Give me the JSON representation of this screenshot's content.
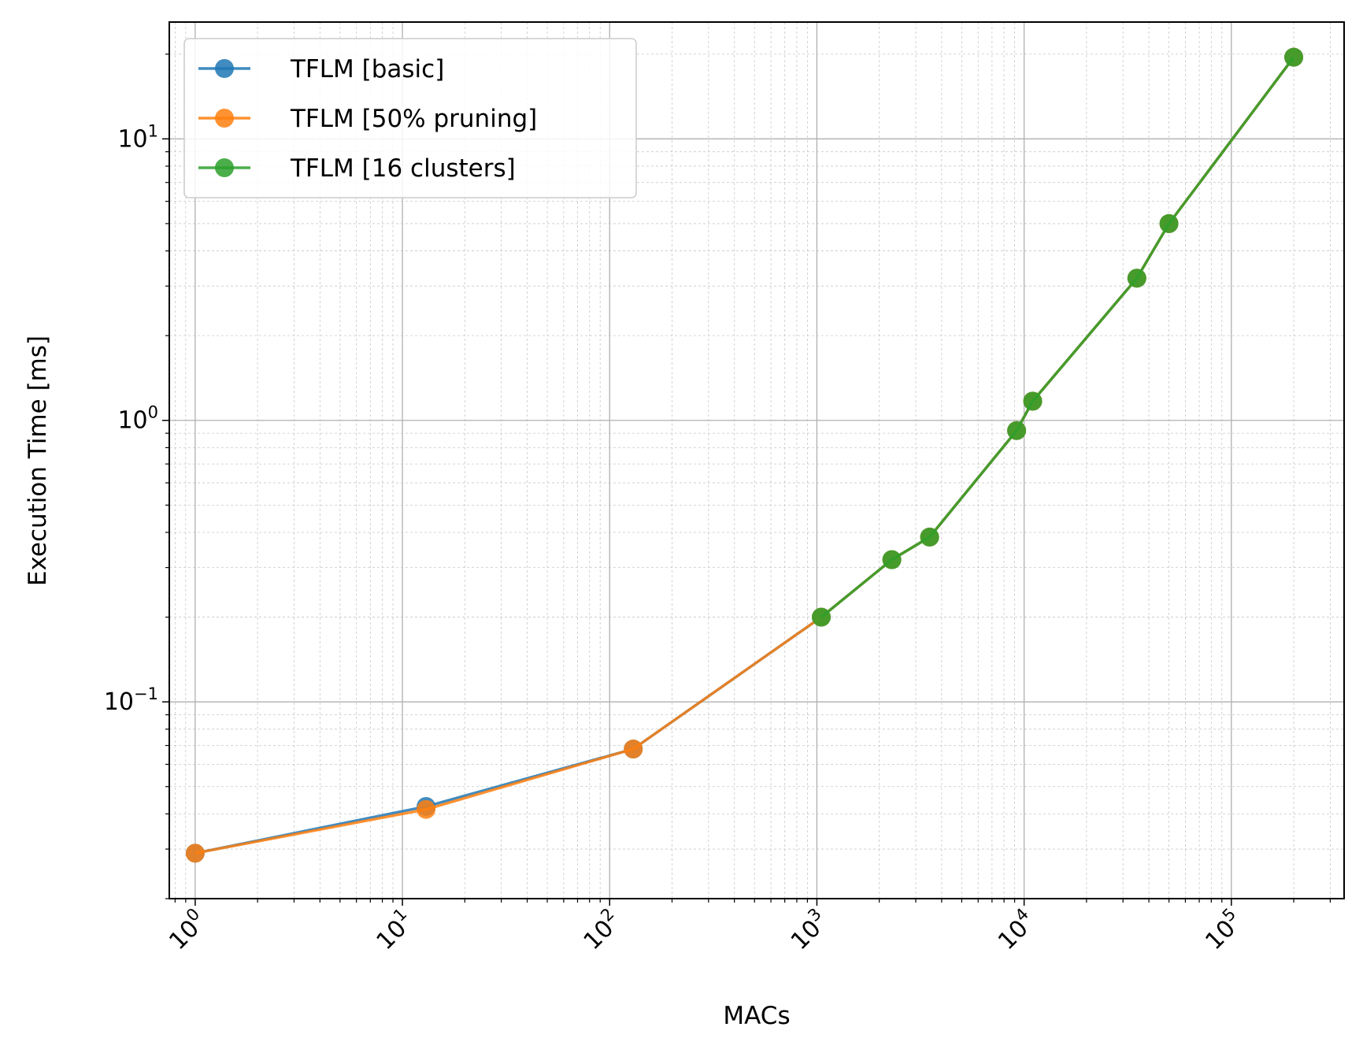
{
  "chart_data": {
    "type": "line",
    "xlabel": "MACs",
    "ylabel": "Execution Time [ms]",
    "x_scale": "log",
    "y_scale": "log",
    "xlim": [
      0.75,
      350000
    ],
    "ylim": [
      0.02,
      26
    ],
    "grid": true,
    "legend_position": "top-left",
    "x_ticks": [
      {
        "value": 1,
        "base": "10",
        "exp": "0"
      },
      {
        "value": 10,
        "base": "10",
        "exp": "1"
      },
      {
        "value": 100,
        "base": "10",
        "exp": "2"
      },
      {
        "value": 1000,
        "base": "10",
        "exp": "3"
      },
      {
        "value": 10000,
        "base": "10",
        "exp": "4"
      },
      {
        "value": 100000,
        "base": "10",
        "exp": "5"
      }
    ],
    "y_ticks": [
      {
        "value": 0.1,
        "base": "10",
        "exp": "−1"
      },
      {
        "value": 1,
        "base": "10",
        "exp": "0"
      },
      {
        "value": 10,
        "base": "10",
        "exp": "1"
      }
    ],
    "series": [
      {
        "name": "TFLM [basic]",
        "color": "#1f77b4",
        "x": [
          1,
          13,
          130,
          1050,
          2300,
          3500,
          9200,
          11000,
          35000,
          50000,
          200000
        ],
        "y": [
          0.029,
          0.0425,
          0.068,
          0.2,
          0.32,
          0.385,
          0.92,
          1.17,
          3.2,
          5.0,
          19.5
        ]
      },
      {
        "name": "TFLM [50% pruning]",
        "color": "#ff7f0e",
        "x": [
          1,
          13,
          130,
          1050,
          2300,
          3500,
          9200,
          11000,
          35000,
          50000,
          200000
        ],
        "y": [
          0.029,
          0.0415,
          0.068,
          0.2,
          0.32,
          0.385,
          0.92,
          1.17,
          3.2,
          5.0,
          19.5
        ]
      },
      {
        "name": "TFLM [16 clusters]",
        "color": "#2ca02c",
        "x": [
          1050,
          2300,
          3500,
          9200,
          11000,
          35000,
          50000,
          200000
        ],
        "y": [
          0.2,
          0.32,
          0.385,
          0.92,
          1.17,
          3.2,
          5.0,
          19.5
        ]
      }
    ]
  }
}
